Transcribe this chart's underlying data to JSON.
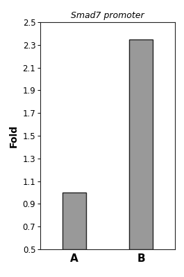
{
  "categories": [
    "A",
    "B"
  ],
  "values": [
    1.0,
    2.35
  ],
  "bar_color": "#999999",
  "bar_edgecolor": "#222222",
  "title": "Smad7 promoter",
  "ylabel": "Fold",
  "ylim": [
    0.5,
    2.5
  ],
  "yticks": [
    0.5,
    0.7,
    0.9,
    1.1,
    1.3,
    1.5,
    1.7,
    1.9,
    2.1,
    2.3,
    2.5
  ],
  "title_fontsize": 9,
  "ylabel_fontsize": 10,
  "xlabel_fontsize": 11,
  "ytick_fontsize": 8.5,
  "bar_width": 0.35,
  "background_color": "#ffffff"
}
